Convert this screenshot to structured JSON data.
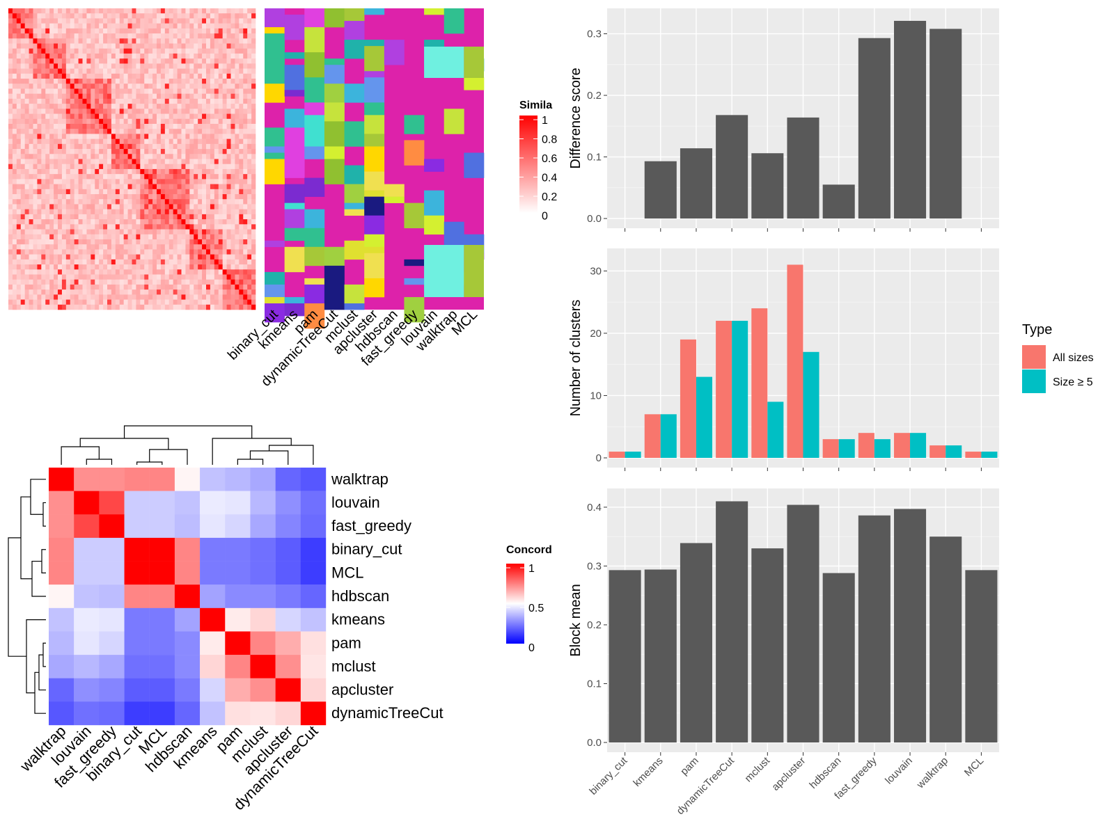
{
  "methods_order": [
    "binary_cut",
    "kmeans",
    "pam",
    "dynamicTreeCut",
    "mclust",
    "apcluster",
    "hdbscan",
    "fast_greedy",
    "louvain",
    "walktrap",
    "MCL"
  ],
  "similarity_legend": {
    "title": "Simila",
    "ticks": [
      "1",
      "0.8",
      "0.6",
      "0.4",
      "0.2",
      "0"
    ],
    "colors": [
      "#ff0000",
      "#ffffff"
    ]
  },
  "concordance_legend": {
    "title": "Concord",
    "ticks": [
      "1",
      "0.5",
      "0"
    ],
    "colors": [
      "#ff0000",
      "#ffffff",
      "#0000ff"
    ]
  },
  "type_legend": {
    "title": "Type",
    "items": [
      {
        "label": "All sizes",
        "color": "#F8766D"
      },
      {
        "label": "Size ≥ 5",
        "color": "#00BFC4"
      }
    ]
  },
  "chart_data": [
    {
      "type": "heatmap",
      "name": "similarity-matrix",
      "colorscale": [
        "#ffffff",
        "#ff0000"
      ],
      "range": [
        0,
        1
      ]
    },
    {
      "type": "heatmap",
      "name": "cluster-assignments",
      "columns": [
        "binary_cut",
        "kmeans",
        "pam",
        "dynamicTreeCut",
        "mclust",
        "apcluster",
        "hdbscan",
        "fast_greedy",
        "louvain",
        "walktrap",
        "MCL"
      ],
      "background_color": "#DD22AA"
    },
    {
      "type": "heatmap",
      "name": "concordance",
      "rows": [
        "walktrap",
        "louvain",
        "fast_greedy",
        "binary_cut",
        "MCL",
        "hdbscan",
        "kmeans",
        "pam",
        "mclust",
        "apcluster",
        "dynamicTreeCut"
      ],
      "columns": [
        "walktrap",
        "louvain",
        "fast_greedy",
        "binary_cut",
        "MCL",
        "hdbscan",
        "kmeans",
        "pam",
        "mclust",
        "apcluster",
        "dynamicTreeCut"
      ],
      "values": [
        [
          1.0,
          0.72,
          0.72,
          0.74,
          0.74,
          0.52,
          0.38,
          0.36,
          0.33,
          0.2,
          0.17
        ],
        [
          0.72,
          1.0,
          0.86,
          0.4,
          0.4,
          0.38,
          0.46,
          0.45,
          0.36,
          0.28,
          0.22
        ],
        [
          0.72,
          0.86,
          1.0,
          0.4,
          0.4,
          0.37,
          0.45,
          0.42,
          0.33,
          0.26,
          0.21
        ],
        [
          0.74,
          0.4,
          0.4,
          1.0,
          1.0,
          0.74,
          0.24,
          0.24,
          0.22,
          0.18,
          0.12
        ],
        [
          0.74,
          0.4,
          0.4,
          1.0,
          1.0,
          0.74,
          0.24,
          0.24,
          0.22,
          0.18,
          0.12
        ],
        [
          0.52,
          0.38,
          0.37,
          0.74,
          0.74,
          1.0,
          0.32,
          0.27,
          0.27,
          0.24,
          0.2
        ],
        [
          0.38,
          0.46,
          0.45,
          0.24,
          0.24,
          0.32,
          1.0,
          0.54,
          0.58,
          0.42,
          0.38
        ],
        [
          0.36,
          0.45,
          0.42,
          0.24,
          0.24,
          0.27,
          0.54,
          1.0,
          0.74,
          0.66,
          0.56
        ],
        [
          0.33,
          0.36,
          0.33,
          0.22,
          0.22,
          0.27,
          0.58,
          0.74,
          1.0,
          0.72,
          0.55
        ],
        [
          0.2,
          0.28,
          0.26,
          0.18,
          0.18,
          0.24,
          0.42,
          0.66,
          0.72,
          1.0,
          0.58
        ],
        [
          0.17,
          0.22,
          0.21,
          0.12,
          0.12,
          0.2,
          0.38,
          0.56,
          0.55,
          0.58,
          1.0
        ]
      ],
      "zlim": [
        0,
        1
      ]
    },
    {
      "type": "bar",
      "name": "difference-score",
      "categories": [
        "binary_cut",
        "kmeans",
        "pam",
        "dynamicTreeCut",
        "mclust",
        "apcluster",
        "hdbscan",
        "fast_greedy",
        "louvain",
        "walktrap",
        "MCL"
      ],
      "values": [
        null,
        0.093,
        0.114,
        0.168,
        0.106,
        0.164,
        0.055,
        0.293,
        0.321,
        0.308,
        null
      ],
      "ylabel": "Difference score",
      "ylim": [
        0,
        0.33
      ],
      "yticks": [
        0.0,
        0.1,
        0.2,
        0.3
      ],
      "ytick_labels": [
        "0.0",
        "0.1",
        "0.2",
        "0.3"
      ],
      "grid": true,
      "color": "#595959"
    },
    {
      "type": "bar",
      "name": "number-of-clusters",
      "categories": [
        "binary_cut",
        "kmeans",
        "pam",
        "dynamicTreeCut",
        "mclust",
        "apcluster",
        "hdbscan",
        "fast_greedy",
        "louvain",
        "walktrap",
        "MCL"
      ],
      "series": [
        {
          "name": "All sizes",
          "values": [
            1,
            7,
            19,
            22,
            24,
            31,
            3,
            4,
            4,
            2,
            1
          ],
          "color": "#F8766D"
        },
        {
          "name": "Size ≥ 5",
          "values": [
            1,
            7,
            13,
            22,
            9,
            17,
            3,
            3,
            4,
            2,
            1
          ],
          "color": "#00BFC4"
        }
      ],
      "ylabel": "Number of clusters",
      "ylim": [
        0,
        32.5
      ],
      "yticks": [
        0,
        10,
        20,
        30
      ],
      "ytick_labels": [
        "0",
        "10",
        "20",
        "30"
      ],
      "grid": true,
      "legend": "right"
    },
    {
      "type": "bar",
      "name": "block-mean",
      "categories": [
        "binary_cut",
        "kmeans",
        "pam",
        "dynamicTreeCut",
        "mclust",
        "apcluster",
        "hdbscan",
        "fast_greedy",
        "louvain",
        "walktrap",
        "MCL"
      ],
      "values": [
        0.293,
        0.294,
        0.339,
        0.41,
        0.33,
        0.404,
        0.288,
        0.386,
        0.397,
        0.35,
        0.293
      ],
      "ylabel": "Block mean",
      "ylim": [
        0,
        0.42
      ],
      "yticks": [
        0.0,
        0.1,
        0.2,
        0.3,
        0.4
      ],
      "ytick_labels": [
        "0.0",
        "0.1",
        "0.2",
        "0.3",
        "0.4"
      ],
      "grid": true,
      "color": "#595959"
    }
  ]
}
